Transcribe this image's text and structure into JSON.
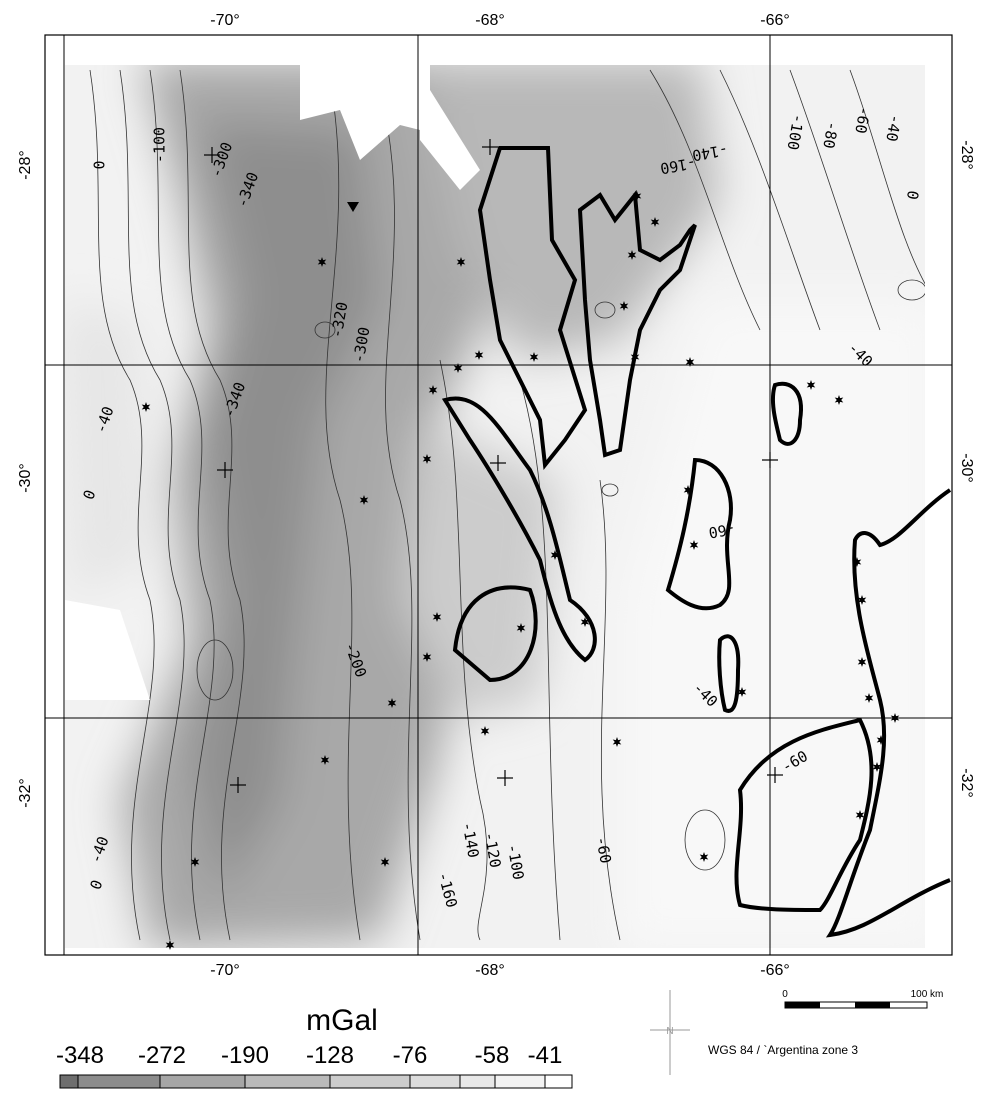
{
  "axes": {
    "top": [
      "-70°",
      "-68°",
      "-66°"
    ],
    "bottom": [
      "-70°",
      "-68°",
      "-66°"
    ],
    "left": [
      "-28°",
      "-30°",
      "-32°"
    ],
    "right": [
      "-28°",
      "-30°",
      "-32°"
    ]
  },
  "contour_labels": [
    0,
    -100,
    -300,
    -340,
    -320,
    -300,
    -340,
    -40,
    0,
    -200,
    -140,
    -120,
    -100,
    -160,
    -60,
    -40,
    0,
    -40,
    -60,
    -60,
    -40,
    -140,
    -160,
    -100,
    -80,
    -60,
    -40,
    0
  ],
  "legend": {
    "title": "mGal",
    "labels": [
      -348,
      -272,
      -190,
      -128,
      -76,
      -58,
      -41
    ]
  },
  "scale_bar": {
    "start": "0",
    "end": "100 km"
  },
  "north_arrow": "N",
  "projection": "WGS 84 / `Argentina zone 3"
}
